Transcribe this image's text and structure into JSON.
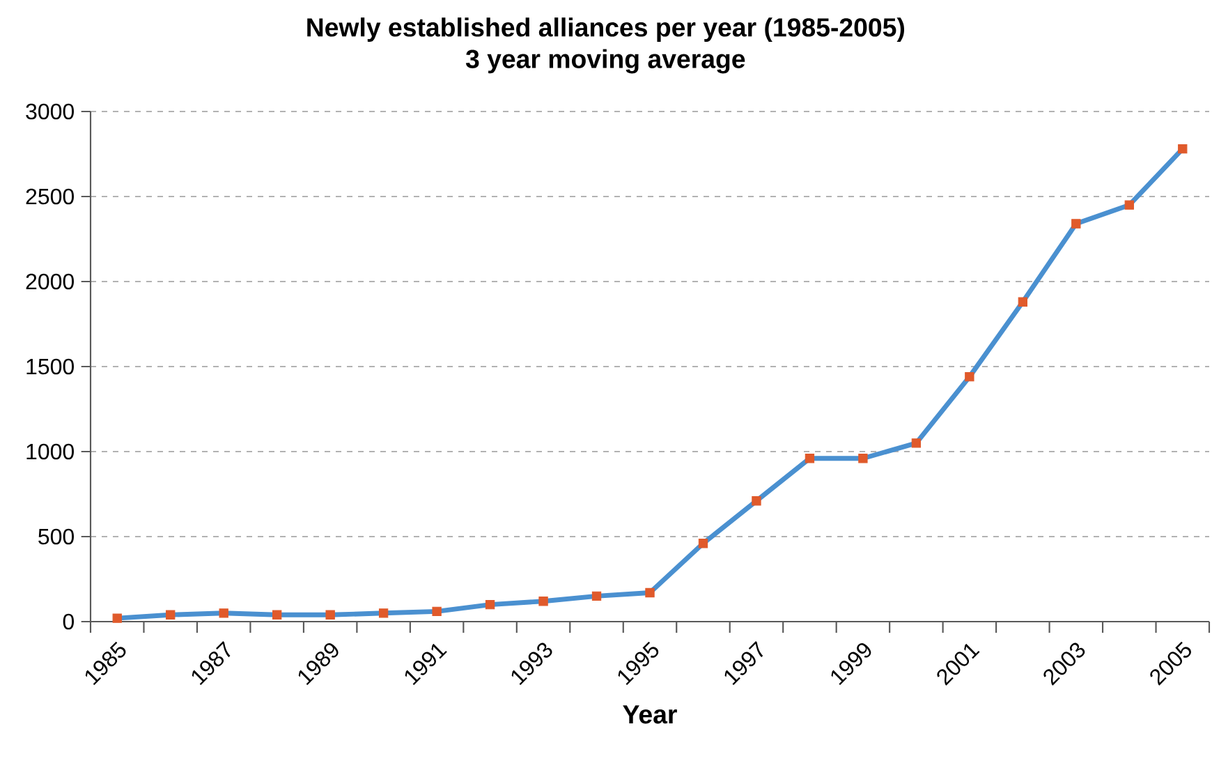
{
  "chart_data": {
    "type": "line",
    "title": "Newly established alliances per year (1985-2005)",
    "subtitle": "3 year moving average",
    "xlabel": "Year",
    "categories": [
      "1985",
      null,
      "1987",
      null,
      "1989",
      null,
      "1991",
      null,
      "1993",
      null,
      "1995",
      null,
      "1997",
      null,
      "1999",
      null,
      "2001",
      null,
      "2003",
      null,
      "2005"
    ],
    "series": [
      {
        "color": "#4a90d0",
        "colors": [
          "#e05a2b",
          "#e05a2b",
          "#e05a2b",
          "#e05a2b",
          "#e05a2b",
          "#e05a2b",
          "#e05a2b",
          "#e05a2b",
          "#e05a2b",
          "#e05a2b",
          "#e05a2b",
          "#e05a2b",
          "#e05a2b",
          "#e05a2b",
          "#e05a2b",
          "#e05a2b",
          "#e05a2b",
          "#e05a2b",
          "#e05a2b",
          "#e05a2b",
          "#e05a2b"
        ],
        "values": [
          20,
          40,
          50,
          40,
          40,
          50,
          60,
          100,
          120,
          150,
          170,
          460,
          710,
          960,
          960,
          1050,
          1440,
          1880,
          2340,
          2450,
          2780
        ]
      }
    ],
    "marker": "square",
    "line_style": "solid",
    "ylim": [
      0,
      3000
    ],
    "yticks": [
      0,
      500,
      1000,
      1500,
      2000,
      2500,
      3000
    ],
    "grid": "y"
  }
}
